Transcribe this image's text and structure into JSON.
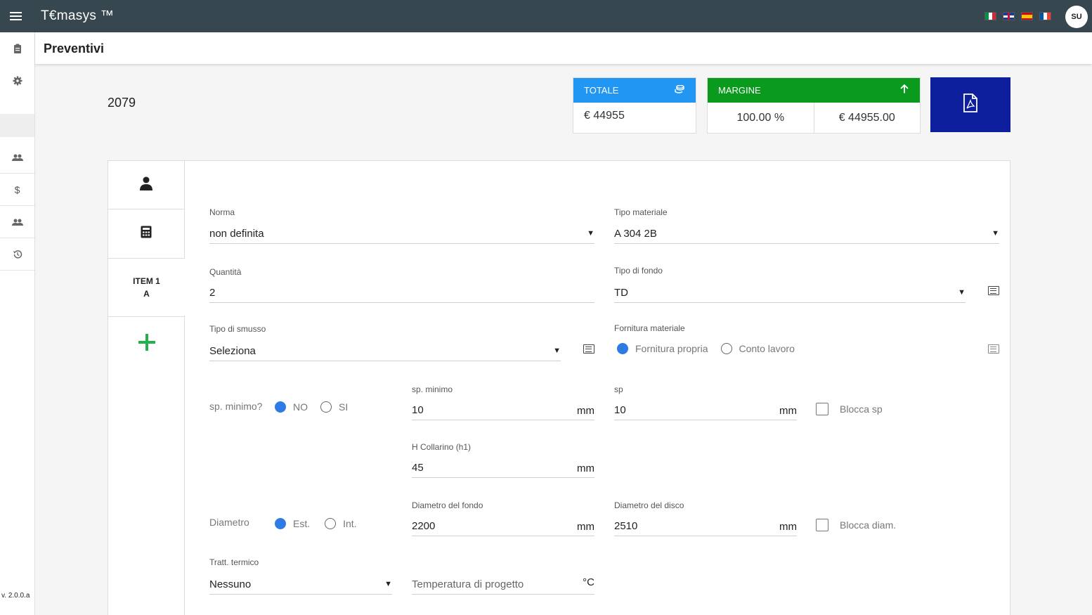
{
  "app": {
    "title": "T€masys ™",
    "avatar": "SU",
    "version": "v. 2.0.0.a"
  },
  "page": {
    "title": "Preventivi",
    "quote_number": "2079"
  },
  "totale": {
    "label": "TOTALE",
    "value": "€ 44955"
  },
  "margine": {
    "label": "MARGINE",
    "percent": "100.00 %",
    "amount": "€  44955.00"
  },
  "tabs": {
    "item_line1": "ITEM 1",
    "item_line2": "A"
  },
  "form": {
    "norma": {
      "label": "Norma",
      "value": "non definita"
    },
    "tipo_materiale": {
      "label": "Tipo materiale",
      "value": "A 304 2B"
    },
    "quantita": {
      "label": "Quantità",
      "value": "2"
    },
    "tipo_fondo": {
      "label": "Tipo di fondo",
      "value": "TD"
    },
    "tipo_smusso": {
      "label": "Tipo di smusso",
      "value": "Seleziona"
    },
    "fornitura": {
      "label": "Fornitura materiale",
      "option_a": "Fornitura propria",
      "option_b": "Conto lavoro"
    },
    "sp_minimo_q": {
      "label": "sp. minimo?",
      "option_no": "NO",
      "option_si": "SI"
    },
    "sp_minimo": {
      "label": "sp. minimo",
      "value": "10",
      "unit": "mm"
    },
    "sp": {
      "label": "sp",
      "value": "10",
      "unit": "mm"
    },
    "blocca_sp": {
      "label": "Blocca sp"
    },
    "h_collarino": {
      "label": "H Collarino (h1)",
      "value": "45",
      "unit": "mm"
    },
    "diametro": {
      "label": "Diametro",
      "option_est": "Est.",
      "option_int": "Int."
    },
    "diametro_fondo": {
      "label": "Diametro del fondo",
      "value": "2200",
      "unit": "mm"
    },
    "diametro_disco": {
      "label": "Diametro del disco",
      "value": "2510",
      "unit": "mm"
    },
    "blocca_diam": {
      "label": "Blocca diam."
    },
    "tratt_termico": {
      "label": "Tratt. termico",
      "value": "Nessuno"
    },
    "temperatura": {
      "placeholder": "Temperatura di progetto",
      "unit": "°C"
    }
  },
  "icons": {
    "menu": "hamburger-icon",
    "sidebar": [
      "clipboard-icon",
      "gear-icon",
      "people-icon",
      "dollar-icon",
      "group-icon",
      "history-icon"
    ],
    "flags": [
      "flag-it",
      "flag-uk",
      "flag-es",
      "flag-fr"
    ],
    "totale": "coins-icon",
    "margine": "arrow-up-icon",
    "pdf": "pdf-file-icon",
    "tabs": [
      "person-icon",
      "calculator-icon"
    ],
    "add": "plus-icon"
  },
  "colors": {
    "topbar": "#37474f",
    "totale": "#2196f3",
    "margine": "#0a9a1e",
    "pdf": "#0d1f9c",
    "add": "#22b14c",
    "radio": "#2f7be5"
  }
}
